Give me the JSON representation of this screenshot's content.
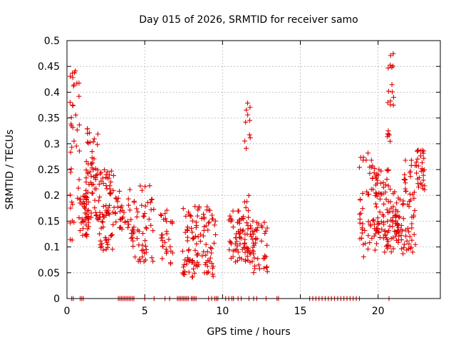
{
  "chart_data": {
    "type": "scatter",
    "title": "Day 015 of 2026, SRMTID for receiver samo",
    "xlabel": "GPS time / hours",
    "ylabel": "SRMTID / TECUs",
    "xlim": [
      0,
      24
    ],
    "ylim": [
      0,
      0.5
    ],
    "x_ticks": [
      0,
      5,
      10,
      15,
      20
    ],
    "y_ticks": [
      0,
      0.05,
      0.1,
      0.15,
      0.2,
      0.25,
      0.3,
      0.35,
      0.4,
      0.45,
      0.5
    ],
    "grid": true,
    "marker": "plus",
    "color": "#e00000",
    "series": [
      {
        "name": "SRMTID",
        "clusters": [
          {
            "x_range": [
              0.2,
              0.8
            ],
            "y_range": [
              0.11,
              0.45
            ],
            "count": 40
          },
          {
            "x_range": [
              0.8,
              1.4
            ],
            "y_range": [
              0.12,
              0.21
            ],
            "count": 40
          },
          {
            "x_range": [
              1.2,
              2.0
            ],
            "y_range": [
              0.15,
              0.33
            ],
            "count": 60
          },
          {
            "x_range": [
              2.0,
              3.0
            ],
            "y_range": [
              0.09,
              0.25
            ],
            "count": 70
          },
          {
            "x_range": [
              3.0,
              4.0
            ],
            "y_range": [
              0.13,
              0.21
            ],
            "count": 30
          },
          {
            "x_range": [
              4.0,
              5.6
            ],
            "y_range": [
              0.07,
              0.22
            ],
            "count": 60
          },
          {
            "x_range": [
              6.0,
              6.8
            ],
            "y_range": [
              0.05,
              0.18
            ],
            "count": 30
          },
          {
            "x_range": [
              7.4,
              9.6
            ],
            "y_range": [
              0.04,
              0.18
            ],
            "count": 110
          },
          {
            "x_range": [
              10.4,
              11.2
            ],
            "y_range": [
              0.07,
              0.17
            ],
            "count": 40
          },
          {
            "x_range": [
              11.2,
              12.0
            ],
            "y_range": [
              0.07,
              0.16
            ],
            "count": 40
          },
          {
            "x_range": [
              11.4,
              11.8
            ],
            "y_range": [
              0.17,
              0.38
            ],
            "count": 15
          },
          {
            "x_range": [
              11.9,
              12.9
            ],
            "y_range": [
              0.05,
              0.15
            ],
            "count": 40
          },
          {
            "x_range": [
              18.8,
              19.8
            ],
            "y_range": [
              0.08,
              0.29
            ],
            "count": 50
          },
          {
            "x_range": [
              19.8,
              20.8
            ],
            "y_range": [
              0.09,
              0.25
            ],
            "count": 80
          },
          {
            "x_range": [
              20.6,
              21.0
            ],
            "y_range": [
              0.3,
              0.5
            ],
            "count": 20
          },
          {
            "x_range": [
              20.8,
              21.6
            ],
            "y_range": [
              0.09,
              0.21
            ],
            "count": 50
          },
          {
            "x_range": [
              21.6,
              22.4
            ],
            "y_range": [
              0.08,
              0.27
            ],
            "count": 50
          },
          {
            "x_range": [
              22.4,
              23.0
            ],
            "y_range": [
              0.21,
              0.3
            ],
            "count": 30
          }
        ],
        "zero_points": [
          0.3,
          0.4,
          0.85,
          0.95,
          1.05,
          3.3,
          3.4,
          3.5,
          3.6,
          3.7,
          3.8,
          3.9,
          4.0,
          4.1,
          4.2,
          4.3,
          5.0,
          5.6,
          6.3,
          6.6,
          7.1,
          7.2,
          7.3,
          7.4,
          7.5,
          7.6,
          7.7,
          7.8,
          8.0,
          8.1,
          8.2,
          8.3,
          9.1,
          9.3,
          9.5,
          9.6,
          9.7,
          10.2,
          10.4,
          10.6,
          10.7,
          11.0,
          11.2,
          11.7,
          12.0,
          12.2,
          12.8,
          13.5,
          13.6,
          15.6,
          15.8,
          16.0,
          16.2,
          16.4,
          16.6,
          16.8,
          17.0,
          17.2,
          17.4,
          17.6,
          17.8,
          18.0,
          18.2,
          18.4,
          18.6,
          18.8,
          20.7
        ]
      }
    ]
  }
}
